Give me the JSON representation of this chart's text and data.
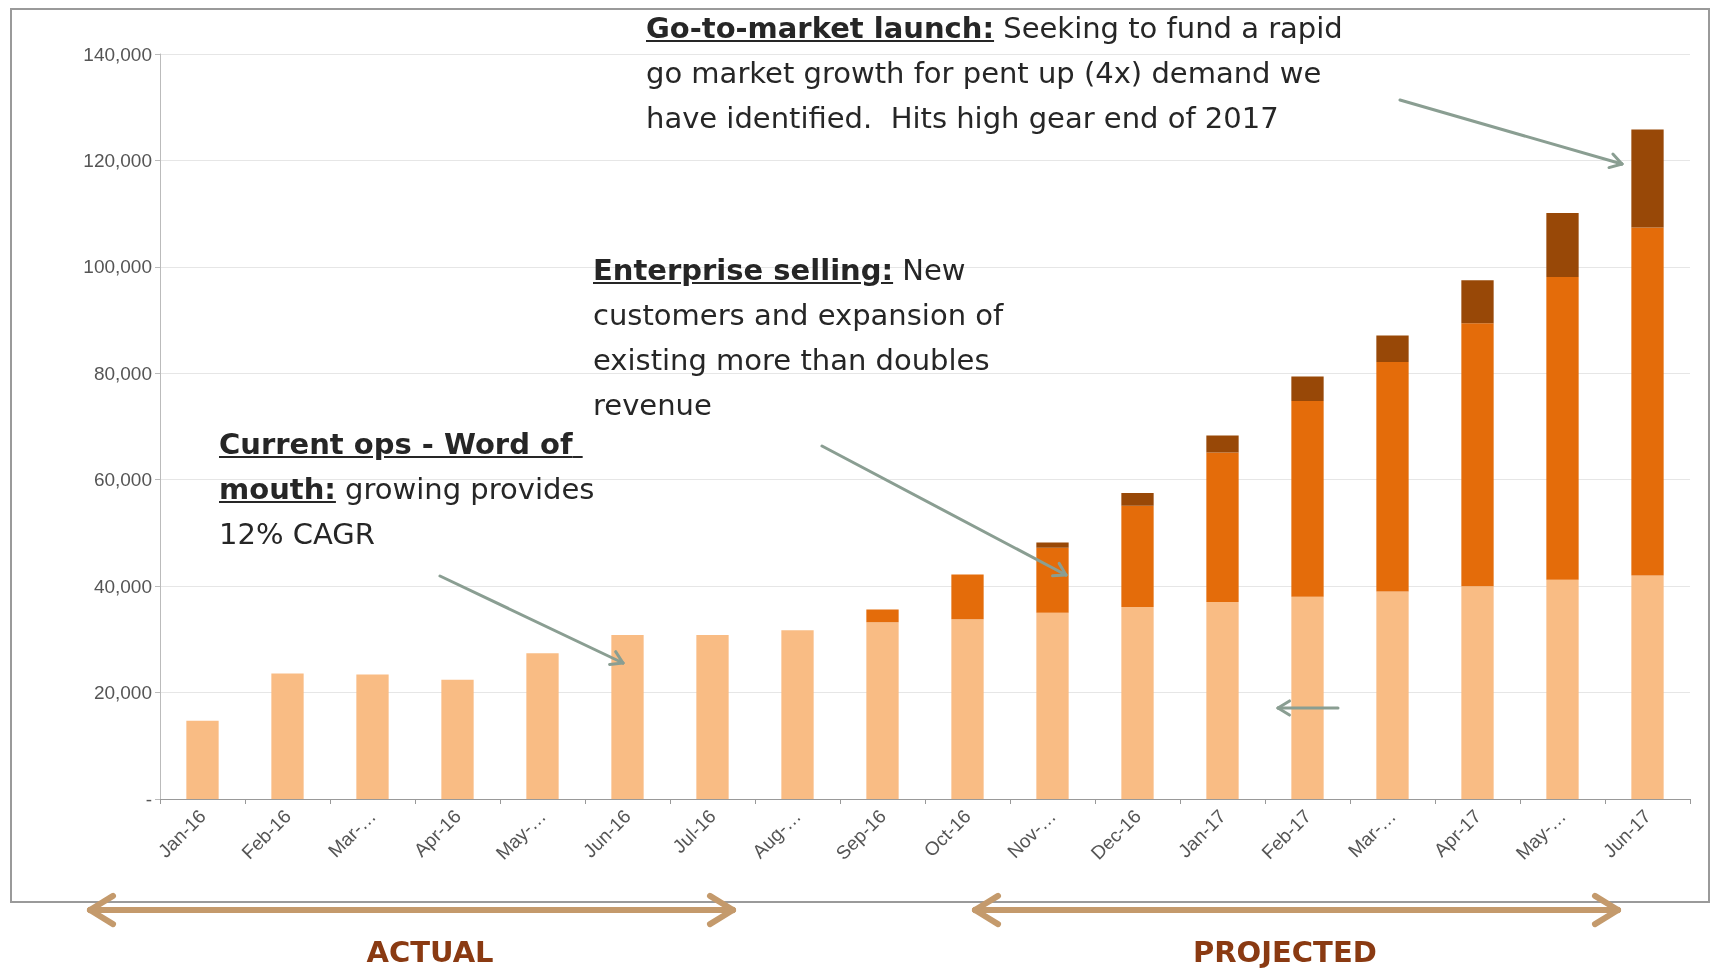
{
  "chart_data": {
    "type": "bar",
    "stacked": true,
    "grid": "y",
    "categories": [
      "Jan-16",
      "Feb-16",
      "Mar-…",
      "Apr-16",
      "May-…",
      "Jun-16",
      "Jul-16",
      "Aug-…",
      "Sep-16",
      "Oct-16",
      "Nov-…",
      "Dec-16",
      "Jan-17",
      "Feb-17",
      "Mar-…",
      "Apr-17",
      "May-…",
      "Jun-17"
    ],
    "series": [
      {
        "color": "#f9bc84",
        "values": [
          14700,
          23600,
          23400,
          22400,
          27400,
          30800,
          30800,
          31700,
          33200,
          33800,
          35000,
          36100,
          37000,
          38000,
          39000,
          40000,
          41200,
          42000
        ]
      },
      {
        "color": "#e46c0a",
        "values": [
          null,
          null,
          null,
          null,
          null,
          null,
          null,
          null,
          2400,
          8400,
          12200,
          19000,
          28100,
          36800,
          43100,
          49400,
          56900,
          65400
        ]
      },
      {
        "color": "#984807",
        "values": [
          null,
          null,
          null,
          null,
          null,
          null,
          null,
          null,
          null,
          null,
          1000,
          2400,
          3200,
          4600,
          5000,
          8100,
          12000,
          18400
        ]
      }
    ],
    "ylim": [
      0,
      140000
    ],
    "yticks": [
      {
        "value": 0,
        "label": "-"
      },
      {
        "value": 20000,
        "label": "20,000"
      },
      {
        "value": 40000,
        "label": "40,000"
      },
      {
        "value": 60000,
        "label": "60,000"
      },
      {
        "value": 80000,
        "label": "80,000"
      },
      {
        "value": 100000,
        "label": "100,000"
      },
      {
        "value": 120000,
        "label": "120,000"
      },
      {
        "value": 140000,
        "label": "140,000"
      }
    ],
    "annotations": [
      "Go-to-market launch: Seeking to fund a rapid go market growth for pent up (4x) demand we have identified.  Hits high gear end of 2017",
      "Enterprise selling: New customers and expansion of existing more than doubles revenue",
      "Current ops - Word of mouth: growing provides 12% CAGR",
      "ACTUAL",
      "PROJECTED"
    ]
  }
}
